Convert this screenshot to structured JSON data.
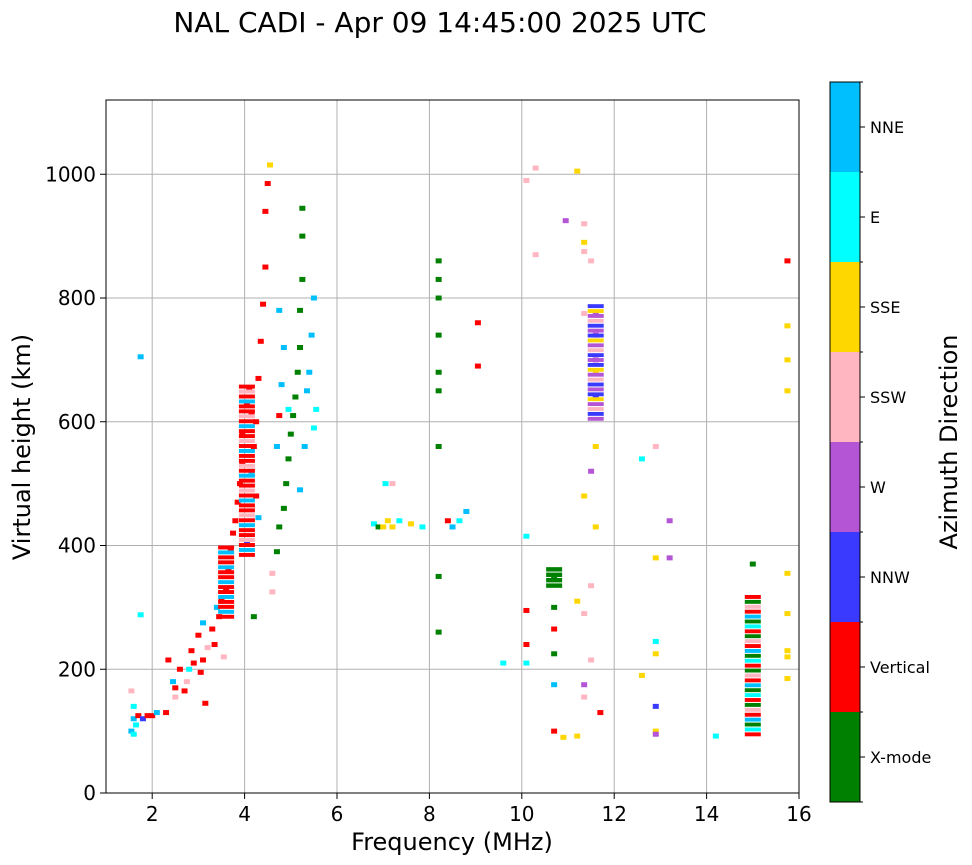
{
  "chart_data": {
    "type": "scatter",
    "title": "NAL CADI - Apr 09 14:45:00 2025 UTC",
    "xlabel": "Frequency (MHz)",
    "ylabel": "Virtual height (km)",
    "xlim": [
      1,
      16
    ],
    "ylim": [
      0,
      1120
    ],
    "xticks": [
      "2",
      "4",
      "6",
      "8",
      "10",
      "12",
      "14",
      "16"
    ],
    "yticks": [
      "0",
      "200",
      "400",
      "600",
      "800",
      "1000"
    ],
    "grid": true,
    "colorbar": {
      "label": "Azimuth Direction",
      "categories": [
        {
          "name": "X-mode",
          "color": "#008000"
        },
        {
          "name": "Vertical",
          "color": "#ff0000"
        },
        {
          "name": "NNW",
          "color": "#3a3aff"
        },
        {
          "name": "W",
          "color": "#b455d6"
        },
        {
          "name": "SSW",
          "color": "#ffb6c1"
        },
        {
          "name": "SSE",
          "color": "#ffd700"
        },
        {
          "name": "E",
          "color": "#00ffff"
        },
        {
          "name": "NNE",
          "color": "#00bfff"
        }
      ]
    },
    "points": [
      {
        "f": 1.55,
        "h": 100,
        "c": "NNE"
      },
      {
        "f": 1.6,
        "h": 95,
        "c": "E"
      },
      {
        "f": 1.65,
        "h": 110,
        "c": "E"
      },
      {
        "f": 1.6,
        "h": 120,
        "c": "NNE"
      },
      {
        "f": 1.6,
        "h": 140,
        "c": "E"
      },
      {
        "f": 1.55,
        "h": 165,
        "c": "SSW"
      },
      {
        "f": 1.7,
        "h": 125,
        "c": "Vertical"
      },
      {
        "f": 1.8,
        "h": 120,
        "c": "NNW"
      },
      {
        "f": 1.9,
        "h": 125,
        "c": "Vertical"
      },
      {
        "f": 2.0,
        "h": 125,
        "c": "Vertical"
      },
      {
        "f": 2.1,
        "h": 130,
        "c": "NNE"
      },
      {
        "f": 1.75,
        "h": 705,
        "c": "NNE"
      },
      {
        "f": 1.75,
        "h": 288,
        "c": "E"
      },
      {
        "f": 2.3,
        "h": 130,
        "c": "Vertical"
      },
      {
        "f": 2.35,
        "h": 215,
        "c": "Vertical"
      },
      {
        "f": 2.45,
        "h": 180,
        "c": "NNE"
      },
      {
        "f": 2.5,
        "h": 170,
        "c": "Vertical"
      },
      {
        "f": 2.5,
        "h": 155,
        "c": "SSW"
      },
      {
        "f": 2.6,
        "h": 200,
        "c": "Vertical"
      },
      {
        "f": 2.7,
        "h": 165,
        "c": "Vertical"
      },
      {
        "f": 2.75,
        "h": 180,
        "c": "SSW"
      },
      {
        "f": 2.8,
        "h": 200,
        "c": "E"
      },
      {
        "f": 2.85,
        "h": 230,
        "c": "Vertical"
      },
      {
        "f": 2.9,
        "h": 210,
        "c": "Vertical"
      },
      {
        "f": 3.0,
        "h": 255,
        "c": "Vertical"
      },
      {
        "f": 3.05,
        "h": 195,
        "c": "Vertical"
      },
      {
        "f": 3.1,
        "h": 275,
        "c": "NNE"
      },
      {
        "f": 3.1,
        "h": 215,
        "c": "Vertical"
      },
      {
        "f": 3.15,
        "h": 145,
        "c": "Vertical"
      },
      {
        "f": 3.2,
        "h": 235,
        "c": "SSW"
      },
      {
        "f": 3.3,
        "h": 265,
        "c": "Vertical"
      },
      {
        "f": 3.35,
        "h": 240,
        "c": "Vertical"
      },
      {
        "f": 3.4,
        "h": 300,
        "c": "NNE"
      },
      {
        "f": 3.45,
        "h": 285,
        "c": "Vertical"
      },
      {
        "f": 3.5,
        "h": 310,
        "c": "Vertical"
      },
      {
        "f": 3.55,
        "h": 220,
        "c": "SSW"
      },
      {
        "f": 3.6,
        "h": 330,
        "c": "Vertical"
      },
      {
        "f": 3.65,
        "h": 360,
        "c": "Vertical"
      },
      {
        "f": 3.7,
        "h": 395,
        "c": "Vertical"
      },
      {
        "f": 3.75,
        "h": 420,
        "c": "Vertical"
      },
      {
        "f": 3.8,
        "h": 440,
        "c": "Vertical"
      },
      {
        "f": 3.85,
        "h": 470,
        "c": "Vertical"
      },
      {
        "f": 3.9,
        "h": 500,
        "c": "Vertical"
      },
      {
        "f": 3.95,
        "h": 530,
        "c": "Vertical"
      },
      {
        "f": 3.95,
        "h": 580,
        "c": "Vertical"
      },
      {
        "f": 4.05,
        "h": 630,
        "c": "Vertical"
      },
      {
        "f": 4.1,
        "h": 650,
        "c": "Vertical"
      },
      {
        "f": 4.15,
        "h": 610,
        "c": "Vertical"
      },
      {
        "f": 4.2,
        "h": 560,
        "c": "Vertical"
      },
      {
        "f": 4.25,
        "h": 600,
        "c": "Vertical"
      },
      {
        "f": 4.3,
        "h": 670,
        "c": "Vertical"
      },
      {
        "f": 4.35,
        "h": 730,
        "c": "Vertical"
      },
      {
        "f": 4.4,
        "h": 790,
        "c": "Vertical"
      },
      {
        "f": 4.45,
        "h": 850,
        "c": "Vertical"
      },
      {
        "f": 4.45,
        "h": 940,
        "c": "Vertical"
      },
      {
        "f": 4.5,
        "h": 985,
        "c": "Vertical"
      },
      {
        "f": 4.55,
        "h": 1015,
        "c": "SSE"
      },
      {
        "f": 4.6,
        "h": 355,
        "c": "SSW"
      },
      {
        "f": 4.6,
        "h": 325,
        "c": "SSW"
      },
      {
        "f": 4.3,
        "h": 445,
        "c": "NNE"
      },
      {
        "f": 4.25,
        "h": 480,
        "c": "Vertical"
      },
      {
        "f": 4.15,
        "h": 520,
        "c": "NNE"
      },
      {
        "f": 4.05,
        "h": 405,
        "c": "NNW"
      },
      {
        "f": 4.2,
        "h": 285,
        "c": "X-mode"
      },
      {
        "f": 4.7,
        "h": 560,
        "c": "NNE"
      },
      {
        "f": 4.75,
        "h": 610,
        "c": "Vertical"
      },
      {
        "f": 4.8,
        "h": 660,
        "c": "NNE"
      },
      {
        "f": 4.85,
        "h": 720,
        "c": "NNE"
      },
      {
        "f": 4.75,
        "h": 780,
        "c": "NNE"
      },
      {
        "f": 4.95,
        "h": 620,
        "c": "E"
      },
      {
        "f": 4.7,
        "h": 390,
        "c": "X-mode"
      },
      {
        "f": 4.75,
        "h": 430,
        "c": "X-mode"
      },
      {
        "f": 4.85,
        "h": 460,
        "c": "X-mode"
      },
      {
        "f": 4.9,
        "h": 500,
        "c": "X-mode"
      },
      {
        "f": 4.95,
        "h": 540,
        "c": "X-mode"
      },
      {
        "f": 5.0,
        "h": 580,
        "c": "X-mode"
      },
      {
        "f": 5.05,
        "h": 610,
        "c": "X-mode"
      },
      {
        "f": 5.1,
        "h": 640,
        "c": "X-mode"
      },
      {
        "f": 5.15,
        "h": 680,
        "c": "X-mode"
      },
      {
        "f": 5.2,
        "h": 720,
        "c": "X-mode"
      },
      {
        "f": 5.2,
        "h": 780,
        "c": "X-mode"
      },
      {
        "f": 5.25,
        "h": 830,
        "c": "X-mode"
      },
      {
        "f": 5.25,
        "h": 900,
        "c": "X-mode"
      },
      {
        "f": 5.25,
        "h": 945,
        "c": "X-mode"
      },
      {
        "f": 5.2,
        "h": 490,
        "c": "NNE"
      },
      {
        "f": 5.3,
        "h": 560,
        "c": "NNE"
      },
      {
        "f": 5.4,
        "h": 680,
        "c": "NNE"
      },
      {
        "f": 5.45,
        "h": 740,
        "c": "NNE"
      },
      {
        "f": 5.5,
        "h": 800,
        "c": "NNE"
      },
      {
        "f": 5.5,
        "h": 590,
        "c": "E"
      },
      {
        "f": 5.55,
        "h": 620,
        "c": "E"
      },
      {
        "f": 5.35,
        "h": 650,
        "c": "NNE"
      },
      {
        "f": 6.8,
        "h": 435,
        "c": "E"
      },
      {
        "f": 6.9,
        "h": 430,
        "c": "X-mode"
      },
      {
        "f": 7.0,
        "h": 430,
        "c": "SSE"
      },
      {
        "f": 7.1,
        "h": 440,
        "c": "SSE"
      },
      {
        "f": 7.2,
        "h": 430,
        "c": "SSE"
      },
      {
        "f": 7.35,
        "h": 440,
        "c": "E"
      },
      {
        "f": 7.6,
        "h": 435,
        "c": "SSE"
      },
      {
        "f": 7.85,
        "h": 430,
        "c": "E"
      },
      {
        "f": 7.05,
        "h": 500,
        "c": "E"
      },
      {
        "f": 7.2,
        "h": 500,
        "c": "SSW"
      },
      {
        "f": 8.2,
        "h": 860,
        "c": "X-mode"
      },
      {
        "f": 8.2,
        "h": 830,
        "c": "X-mode"
      },
      {
        "f": 8.2,
        "h": 800,
        "c": "X-mode"
      },
      {
        "f": 8.2,
        "h": 740,
        "c": "X-mode"
      },
      {
        "f": 8.2,
        "h": 680,
        "c": "X-mode"
      },
      {
        "f": 8.2,
        "h": 650,
        "c": "X-mode"
      },
      {
        "f": 8.2,
        "h": 560,
        "c": "X-mode"
      },
      {
        "f": 8.2,
        "h": 350,
        "c": "X-mode"
      },
      {
        "f": 8.2,
        "h": 260,
        "c": "X-mode"
      },
      {
        "f": 8.4,
        "h": 440,
        "c": "Vertical"
      },
      {
        "f": 8.5,
        "h": 430,
        "c": "NNE"
      },
      {
        "f": 8.65,
        "h": 440,
        "c": "E"
      },
      {
        "f": 8.8,
        "h": 455,
        "c": "NNE"
      },
      {
        "f": 9.05,
        "h": 760,
        "c": "Vertical"
      },
      {
        "f": 9.05,
        "h": 690,
        "c": "Vertical"
      },
      {
        "f": 9.6,
        "h": 210,
        "c": "E"
      },
      {
        "f": 10.1,
        "h": 990,
        "c": "SSW"
      },
      {
        "f": 10.3,
        "h": 1010,
        "c": "SSW"
      },
      {
        "f": 10.3,
        "h": 870,
        "c": "SSW"
      },
      {
        "f": 10.1,
        "h": 415,
        "c": "E"
      },
      {
        "f": 10.1,
        "h": 295,
        "c": "Vertical"
      },
      {
        "f": 10.1,
        "h": 240,
        "c": "Vertical"
      },
      {
        "f": 10.1,
        "h": 210,
        "c": "E"
      },
      {
        "f": 10.7,
        "h": 345,
        "c": "X-mode"
      },
      {
        "f": 10.7,
        "h": 300,
        "c": "X-mode"
      },
      {
        "f": 10.7,
        "h": 265,
        "c": "Vertical"
      },
      {
        "f": 10.7,
        "h": 225,
        "c": "X-mode"
      },
      {
        "f": 10.7,
        "h": 175,
        "c": "NNE"
      },
      {
        "f": 10.7,
        "h": 100,
        "c": "Vertical"
      },
      {
        "f": 10.9,
        "h": 90,
        "c": "SSE"
      },
      {
        "f": 11.2,
        "h": 92,
        "c": "SSE"
      },
      {
        "f": 10.95,
        "h": 925,
        "c": "W"
      },
      {
        "f": 11.2,
        "h": 1005,
        "c": "SSE"
      },
      {
        "f": 11.35,
        "h": 920,
        "c": "SSW"
      },
      {
        "f": 11.35,
        "h": 890,
        "c": "SSE"
      },
      {
        "f": 11.35,
        "h": 875,
        "c": "SSW"
      },
      {
        "f": 11.5,
        "h": 860,
        "c": "SSW"
      },
      {
        "f": 11.35,
        "h": 775,
        "c": "SSW"
      },
      {
        "f": 11.6,
        "h": 775,
        "c": "W"
      },
      {
        "f": 11.6,
        "h": 740,
        "c": "W"
      },
      {
        "f": 11.6,
        "h": 700,
        "c": "W"
      },
      {
        "f": 11.6,
        "h": 680,
        "c": "SSE"
      },
      {
        "f": 11.6,
        "h": 640,
        "c": "NNW"
      },
      {
        "f": 11.6,
        "h": 560,
        "c": "SSE"
      },
      {
        "f": 11.5,
        "h": 520,
        "c": "W"
      },
      {
        "f": 11.35,
        "h": 480,
        "c": "SSE"
      },
      {
        "f": 11.6,
        "h": 430,
        "c": "SSE"
      },
      {
        "f": 11.2,
        "h": 310,
        "c": "SSE"
      },
      {
        "f": 11.35,
        "h": 290,
        "c": "SSW"
      },
      {
        "f": 11.5,
        "h": 335,
        "c": "SSW"
      },
      {
        "f": 11.5,
        "h": 215,
        "c": "SSW"
      },
      {
        "f": 11.35,
        "h": 175,
        "c": "W"
      },
      {
        "f": 11.35,
        "h": 155,
        "c": "SSW"
      },
      {
        "f": 11.7,
        "h": 130,
        "c": "Vertical"
      },
      {
        "f": 12.6,
        "h": 540,
        "c": "E"
      },
      {
        "f": 12.9,
        "h": 560,
        "c": "SSW"
      },
      {
        "f": 13.2,
        "h": 440,
        "c": "W"
      },
      {
        "f": 12.9,
        "h": 380,
        "c": "SSE"
      },
      {
        "f": 13.2,
        "h": 380,
        "c": "W"
      },
      {
        "f": 12.9,
        "h": 245,
        "c": "E"
      },
      {
        "f": 12.9,
        "h": 225,
        "c": "SSE"
      },
      {
        "f": 12.6,
        "h": 190,
        "c": "SSE"
      },
      {
        "f": 12.9,
        "h": 140,
        "c": "NNW"
      },
      {
        "f": 12.9,
        "h": 100,
        "c": "SSE"
      },
      {
        "f": 12.9,
        "h": 95,
        "c": "W"
      },
      {
        "f": 14.2,
        "h": 92,
        "c": "E"
      },
      {
        "f": 15.0,
        "h": 370,
        "c": "X-mode"
      },
      {
        "f": 15.75,
        "h": 860,
        "c": "Vertical"
      },
      {
        "f": 15.75,
        "h": 755,
        "c": "SSE"
      },
      {
        "f": 15.75,
        "h": 700,
        "c": "SSE"
      },
      {
        "f": 15.75,
        "h": 650,
        "c": "SSE"
      },
      {
        "f": 15.75,
        "h": 355,
        "c": "SSE"
      },
      {
        "f": 15.75,
        "h": 290,
        "c": "SSE"
      },
      {
        "f": 15.75,
        "h": 230,
        "c": "SSE"
      },
      {
        "f": 15.75,
        "h": 220,
        "c": "SSE"
      },
      {
        "f": 15.75,
        "h": 185,
        "c": "SSE"
      }
    ],
    "stacks": [
      {
        "f": 15.0,
        "h_from": 90,
        "h_to": 320,
        "colors": [
          "Vertical",
          "E",
          "X-mode",
          "NNE",
          "Vertical",
          "SSW",
          "X-mode"
        ]
      },
      {
        "f": 10.7,
        "h_from": 330,
        "h_to": 365,
        "colors": [
          "X-mode"
        ]
      },
      {
        "f": 11.6,
        "h_from": 600,
        "h_to": 790,
        "colors": [
          "W",
          "NNW",
          "SSW",
          "W",
          "SSE",
          "NNW"
        ]
      },
      {
        "f": 4.05,
        "h_from": 380,
        "h_to": 660,
        "colors": [
          "Vertical",
          "NNE",
          "Vertical",
          "SSW",
          "Vertical"
        ]
      },
      {
        "f": 3.6,
        "h_from": 280,
        "h_to": 400,
        "colors": [
          "Vertical",
          "NNE",
          "Vertical"
        ]
      }
    ]
  }
}
